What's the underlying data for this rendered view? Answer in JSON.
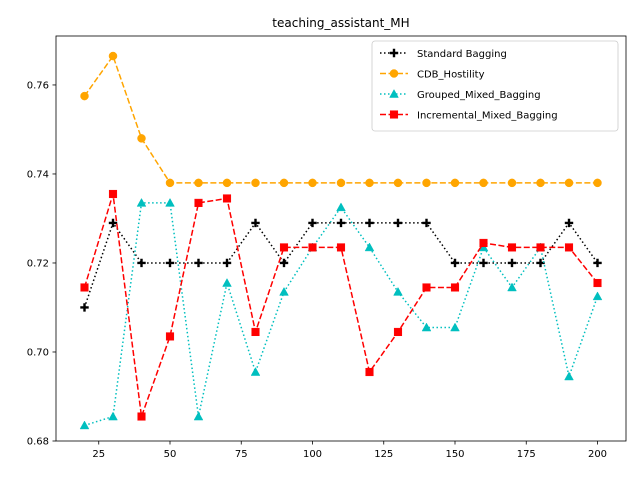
{
  "chart_data": {
    "type": "line",
    "title": "teaching_assistant_MH",
    "xlabel": "",
    "ylabel": "",
    "xlim": [
      10,
      210
    ],
    "ylim": [
      0.68,
      0.771
    ],
    "x": [
      20,
      30,
      40,
      50,
      60,
      70,
      80,
      90,
      100,
      110,
      120,
      130,
      140,
      150,
      160,
      170,
      180,
      190,
      200
    ],
    "x_ticks": [
      25,
      50,
      75,
      100,
      125,
      150,
      175,
      200
    ],
    "x_tick_labels": [
      "25",
      "50",
      "75",
      "100",
      "125",
      "150",
      "175",
      "200"
    ],
    "y_ticks": [
      0.68,
      0.7,
      0.72,
      0.74,
      0.76
    ],
    "y_tick_labels": [
      "0.68",
      "0.70",
      "0.72",
      "0.74",
      "0.76"
    ],
    "grid": false,
    "legend_position": "top-right",
    "series": [
      {
        "name": "Standard Bagging",
        "color": "#000000",
        "line_style": "dotted",
        "marker": "plus",
        "values": [
          0.71,
          0.729,
          0.72,
          0.72,
          0.72,
          0.72,
          0.729,
          0.72,
          0.729,
          0.729,
          0.729,
          0.729,
          0.729,
          0.72,
          0.72,
          0.72,
          0.72,
          0.729,
          0.72
        ]
      },
      {
        "name": "CDB_Hostility",
        "color": "#ffa500",
        "line_style": "dashed",
        "marker": "circle",
        "values": [
          0.7575,
          0.7665,
          0.748,
          0.738,
          0.738,
          0.738,
          0.738,
          0.738,
          0.738,
          0.738,
          0.738,
          0.738,
          0.738,
          0.738,
          0.738,
          0.738,
          0.738,
          0.738,
          0.738
        ]
      },
      {
        "name": "Grouped_Mixed_Bagging",
        "color": "#00bfbf",
        "line_style": "dotted",
        "marker": "triangle",
        "values": [
          0.6835,
          0.6855,
          0.7335,
          0.7335,
          0.6855,
          0.7155,
          0.6955,
          0.7135,
          0.7235,
          0.7325,
          0.7235,
          0.7135,
          0.7055,
          0.7055,
          0.7235,
          0.7145,
          0.7235,
          0.6945,
          0.7125
        ]
      },
      {
        "name": "Incremental_Mixed_Bagging",
        "color": "#ff0000",
        "line_style": "dashed",
        "marker": "square",
        "values": [
          0.7145,
          0.7355,
          0.6855,
          0.7035,
          0.7335,
          0.7345,
          0.7045,
          0.7235,
          0.7235,
          0.7235,
          0.6955,
          0.7045,
          0.7145,
          0.7145,
          0.7245,
          0.7235,
          0.7235,
          0.7235,
          0.7155
        ]
      }
    ]
  }
}
